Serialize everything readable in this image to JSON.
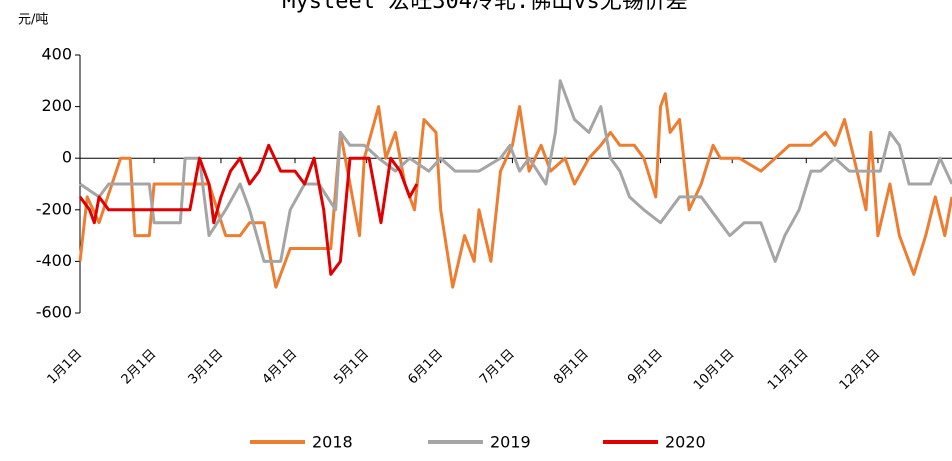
{
  "chart_data": {
    "type": "line",
    "title": "Mysteel 宏旺304冷轧:佛山vs无锡价差",
    "y_label": "元/吨",
    "xlim": [
      1,
      366
    ],
    "xticks": [
      {
        "value": 1,
        "label": "1月1日"
      },
      {
        "value": 32,
        "label": "2月1日"
      },
      {
        "value": 60,
        "label": "3月1日"
      },
      {
        "value": 91,
        "label": "4月1日"
      },
      {
        "value": 121,
        "label": "5月1日"
      },
      {
        "value": 152,
        "label": "6月1日"
      },
      {
        "value": 182,
        "label": "7月1日"
      },
      {
        "value": 213,
        "label": "8月1日"
      },
      {
        "value": 244,
        "label": "9月1日"
      },
      {
        "value": 274,
        "label": "10月1日"
      },
      {
        "value": 305,
        "label": "11月1日"
      },
      {
        "value": 335,
        "label": "12月1日"
      }
    ],
    "ylim": [
      -600,
      400
    ],
    "yticks": [
      -600,
      -400,
      -200,
      0,
      200,
      400
    ],
    "legend": "bottom",
    "series": [
      {
        "name": "2018",
        "color": "#ed7d31",
        "x": [
          1,
          4,
          9,
          18,
          22,
          24,
          30,
          32,
          43,
          51,
          55,
          62,
          68,
          72,
          78,
          83,
          89,
          95,
          101,
          106,
          110,
          114,
          118,
          120,
          126,
          129,
          133,
          137,
          141,
          145,
          150,
          152,
          157,
          162,
          166,
          168,
          173,
          177,
          182,
          185,
          189,
          194,
          198,
          204,
          208,
          214,
          219,
          223,
          227,
          233,
          237,
          242,
          244,
          246,
          248,
          252,
          256,
          261,
          266,
          269,
          277,
          286,
          292,
          298,
          307,
          313,
          317,
          321,
          325,
          330,
          332,
          335,
          340,
          344,
          350,
          355,
          359,
          363,
          366
        ],
        "values": [
          -400,
          -150,
          -250,
          0,
          0,
          -300,
          -300,
          -100,
          -100,
          -100,
          -100,
          -300,
          -300,
          -250,
          -250,
          -500,
          -350,
          -350,
          -350,
          -350,
          100,
          -100,
          -300,
          0,
          200,
          0,
          100,
          -100,
          -200,
          150,
          100,
          -200,
          -500,
          -300,
          -400,
          -200,
          -400,
          -50,
          50,
          200,
          -50,
          50,
          -50,
          0,
          -100,
          0,
          50,
          100,
          50,
          50,
          0,
          -150,
          200,
          250,
          100,
          150,
          -200,
          -100,
          50,
          0,
          0,
          -50,
          0,
          50,
          50,
          100,
          50,
          150,
          0,
          -200,
          100,
          -300,
          -100,
          -300,
          -450,
          -300,
          -150,
          -300,
          -150
        ]
      },
      {
        "name": "2019",
        "color": "#a5a5a5",
        "x": [
          1,
          9,
          13,
          30,
          32,
          43,
          45,
          51,
          55,
          62,
          68,
          72,
          78,
          85,
          89,
          95,
          101,
          108,
          110,
          114,
          120,
          126,
          133,
          139,
          147,
          152,
          158,
          168,
          177,
          181,
          185,
          189,
          196,
          200,
          202,
          208,
          214,
          219,
          223,
          227,
          231,
          237,
          244,
          252,
          261,
          265,
          273,
          279,
          286,
          292,
          296,
          302,
          307,
          311,
          317,
          323,
          330,
          336,
          340,
          344,
          348,
          357,
          361,
          366
        ],
        "values": [
          -100,
          -150,
          -100,
          -100,
          -250,
          -250,
          0,
          0,
          -300,
          -200,
          -100,
          -200,
          -400,
          -400,
          -200,
          -100,
          -100,
          -200,
          100,
          50,
          50,
          0,
          -50,
          0,
          -50,
          0,
          -50,
          -50,
          0,
          50,
          -50,
          0,
          -100,
          100,
          300,
          150,
          100,
          200,
          0,
          -50,
          -150,
          -200,
          -250,
          -150,
          -150,
          -200,
          -300,
          -250,
          -250,
          -400,
          -300,
          -200,
          -50,
          -50,
          0,
          -50,
          -50,
          -50,
          100,
          50,
          -100,
          -100,
          0,
          -100
        ]
      },
      {
        "name": "2020",
        "color": "#e00000",
        "x": [
          1,
          5,
          7,
          9,
          13,
          47,
          51,
          55,
          57,
          60,
          64,
          68,
          72,
          76,
          80,
          85,
          91,
          95,
          99,
          103,
          106,
          110,
          114,
          118,
          122,
          127,
          131,
          135,
          139,
          142
        ],
        "values": [
          -150,
          -200,
          -250,
          -150,
          -200,
          -200,
          0,
          -100,
          -250,
          -150,
          -50,
          0,
          -100,
          -50,
          50,
          -50,
          -50,
          -100,
          0,
          -200,
          -450,
          -400,
          0,
          0,
          0,
          -250,
          0,
          -50,
          -150,
          -100
        ]
      }
    ]
  }
}
